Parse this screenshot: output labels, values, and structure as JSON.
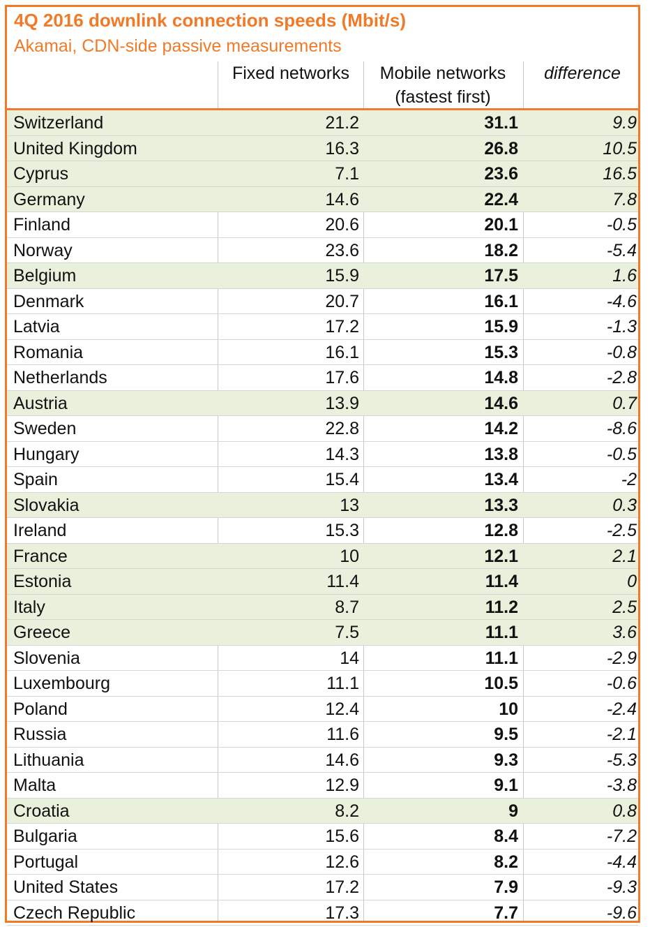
{
  "title": "4Q 2016 downlink connection speeds (Mbit/s)",
  "subtitle": "Akamai, CDN-side passive measurements",
  "colors": {
    "accent": "#F07A28",
    "highlight_row": "#E9F0DC"
  },
  "columns": {
    "fixed": "Fixed networks",
    "mobile_line1": "Mobile networks",
    "mobile_line2": "(fastest first)",
    "difference": "difference"
  },
  "chart_data": {
    "type": "table",
    "title": "4Q 2016 downlink connection speeds (Mbit/s)",
    "subtitle": "Akamai, CDN-side passive measurements",
    "columns": [
      "",
      "Fixed networks",
      "Mobile networks (fastest first)",
      "difference"
    ],
    "rows": [
      {
        "country": "Switzerland",
        "fixed": "21.2",
        "mobile": "31.1",
        "difference": "9.9",
        "highlight": true
      },
      {
        "country": "United Kingdom",
        "fixed": "16.3",
        "mobile": "26.8",
        "difference": "10.5",
        "highlight": true
      },
      {
        "country": "Cyprus",
        "fixed": "7.1",
        "mobile": "23.6",
        "difference": "16.5",
        "highlight": true
      },
      {
        "country": "Germany",
        "fixed": "14.6",
        "mobile": "22.4",
        "difference": "7.8",
        "highlight": true
      },
      {
        "country": "Finland",
        "fixed": "20.6",
        "mobile": "20.1",
        "difference": "-0.5",
        "highlight": false
      },
      {
        "country": "Norway",
        "fixed": "23.6",
        "mobile": "18.2",
        "difference": "-5.4",
        "highlight": false
      },
      {
        "country": "Belgium",
        "fixed": "15.9",
        "mobile": "17.5",
        "difference": "1.6",
        "highlight": true
      },
      {
        "country": "Denmark",
        "fixed": "20.7",
        "mobile": "16.1",
        "difference": "-4.6",
        "highlight": false
      },
      {
        "country": "Latvia",
        "fixed": "17.2",
        "mobile": "15.9",
        "difference": "-1.3",
        "highlight": false
      },
      {
        "country": "Romania",
        "fixed": "16.1",
        "mobile": "15.3",
        "difference": "-0.8",
        "highlight": false
      },
      {
        "country": "Netherlands",
        "fixed": "17.6",
        "mobile": "14.8",
        "difference": "-2.8",
        "highlight": false
      },
      {
        "country": "Austria",
        "fixed": "13.9",
        "mobile": "14.6",
        "difference": "0.7",
        "highlight": true
      },
      {
        "country": "Sweden",
        "fixed": "22.8",
        "mobile": "14.2",
        "difference": "-8.6",
        "highlight": false
      },
      {
        "country": "Hungary",
        "fixed": "14.3",
        "mobile": "13.8",
        "difference": "-0.5",
        "highlight": false
      },
      {
        "country": "Spain",
        "fixed": "15.4",
        "mobile": "13.4",
        "difference": "-2",
        "highlight": false
      },
      {
        "country": "Slovakia",
        "fixed": "13",
        "mobile": "13.3",
        "difference": "0.3",
        "highlight": true
      },
      {
        "country": "Ireland",
        "fixed": "15.3",
        "mobile": "12.8",
        "difference": "-2.5",
        "highlight": false
      },
      {
        "country": "France",
        "fixed": "10",
        "mobile": "12.1",
        "difference": "2.1",
        "highlight": true
      },
      {
        "country": "Estonia",
        "fixed": "11.4",
        "mobile": "11.4",
        "difference": "0",
        "highlight": true
      },
      {
        "country": "Italy",
        "fixed": "8.7",
        "mobile": "11.2",
        "difference": "2.5",
        "highlight": true
      },
      {
        "country": "Greece",
        "fixed": "7.5",
        "mobile": "11.1",
        "difference": "3.6",
        "highlight": true
      },
      {
        "country": "Slovenia",
        "fixed": "14",
        "mobile": "11.1",
        "difference": "-2.9",
        "highlight": false
      },
      {
        "country": "Luxembourg",
        "fixed": "11.1",
        "mobile": "10.5",
        "difference": "-0.6",
        "highlight": false
      },
      {
        "country": "Poland",
        "fixed": "12.4",
        "mobile": "10",
        "difference": "-2.4",
        "highlight": false
      },
      {
        "country": "Russia",
        "fixed": "11.6",
        "mobile": "9.5",
        "difference": "-2.1",
        "highlight": false
      },
      {
        "country": "Lithuania",
        "fixed": "14.6",
        "mobile": "9.3",
        "difference": "-5.3",
        "highlight": false
      },
      {
        "country": "Malta",
        "fixed": "12.9",
        "mobile": "9.1",
        "difference": "-3.8",
        "highlight": false
      },
      {
        "country": "Croatia",
        "fixed": "8.2",
        "mobile": "9",
        "difference": "0.8",
        "highlight": true
      },
      {
        "country": "Bulgaria",
        "fixed": "15.6",
        "mobile": "8.4",
        "difference": "-7.2",
        "highlight": false
      },
      {
        "country": "Portugal",
        "fixed": "12.6",
        "mobile": "8.2",
        "difference": "-4.4",
        "highlight": false
      },
      {
        "country": "United States",
        "fixed": "17.2",
        "mobile": "7.9",
        "difference": "-9.3",
        "highlight": false
      },
      {
        "country": "Czech Republic",
        "fixed": "17.3",
        "mobile": "7.7",
        "difference": "-9.6",
        "highlight": false
      }
    ]
  }
}
